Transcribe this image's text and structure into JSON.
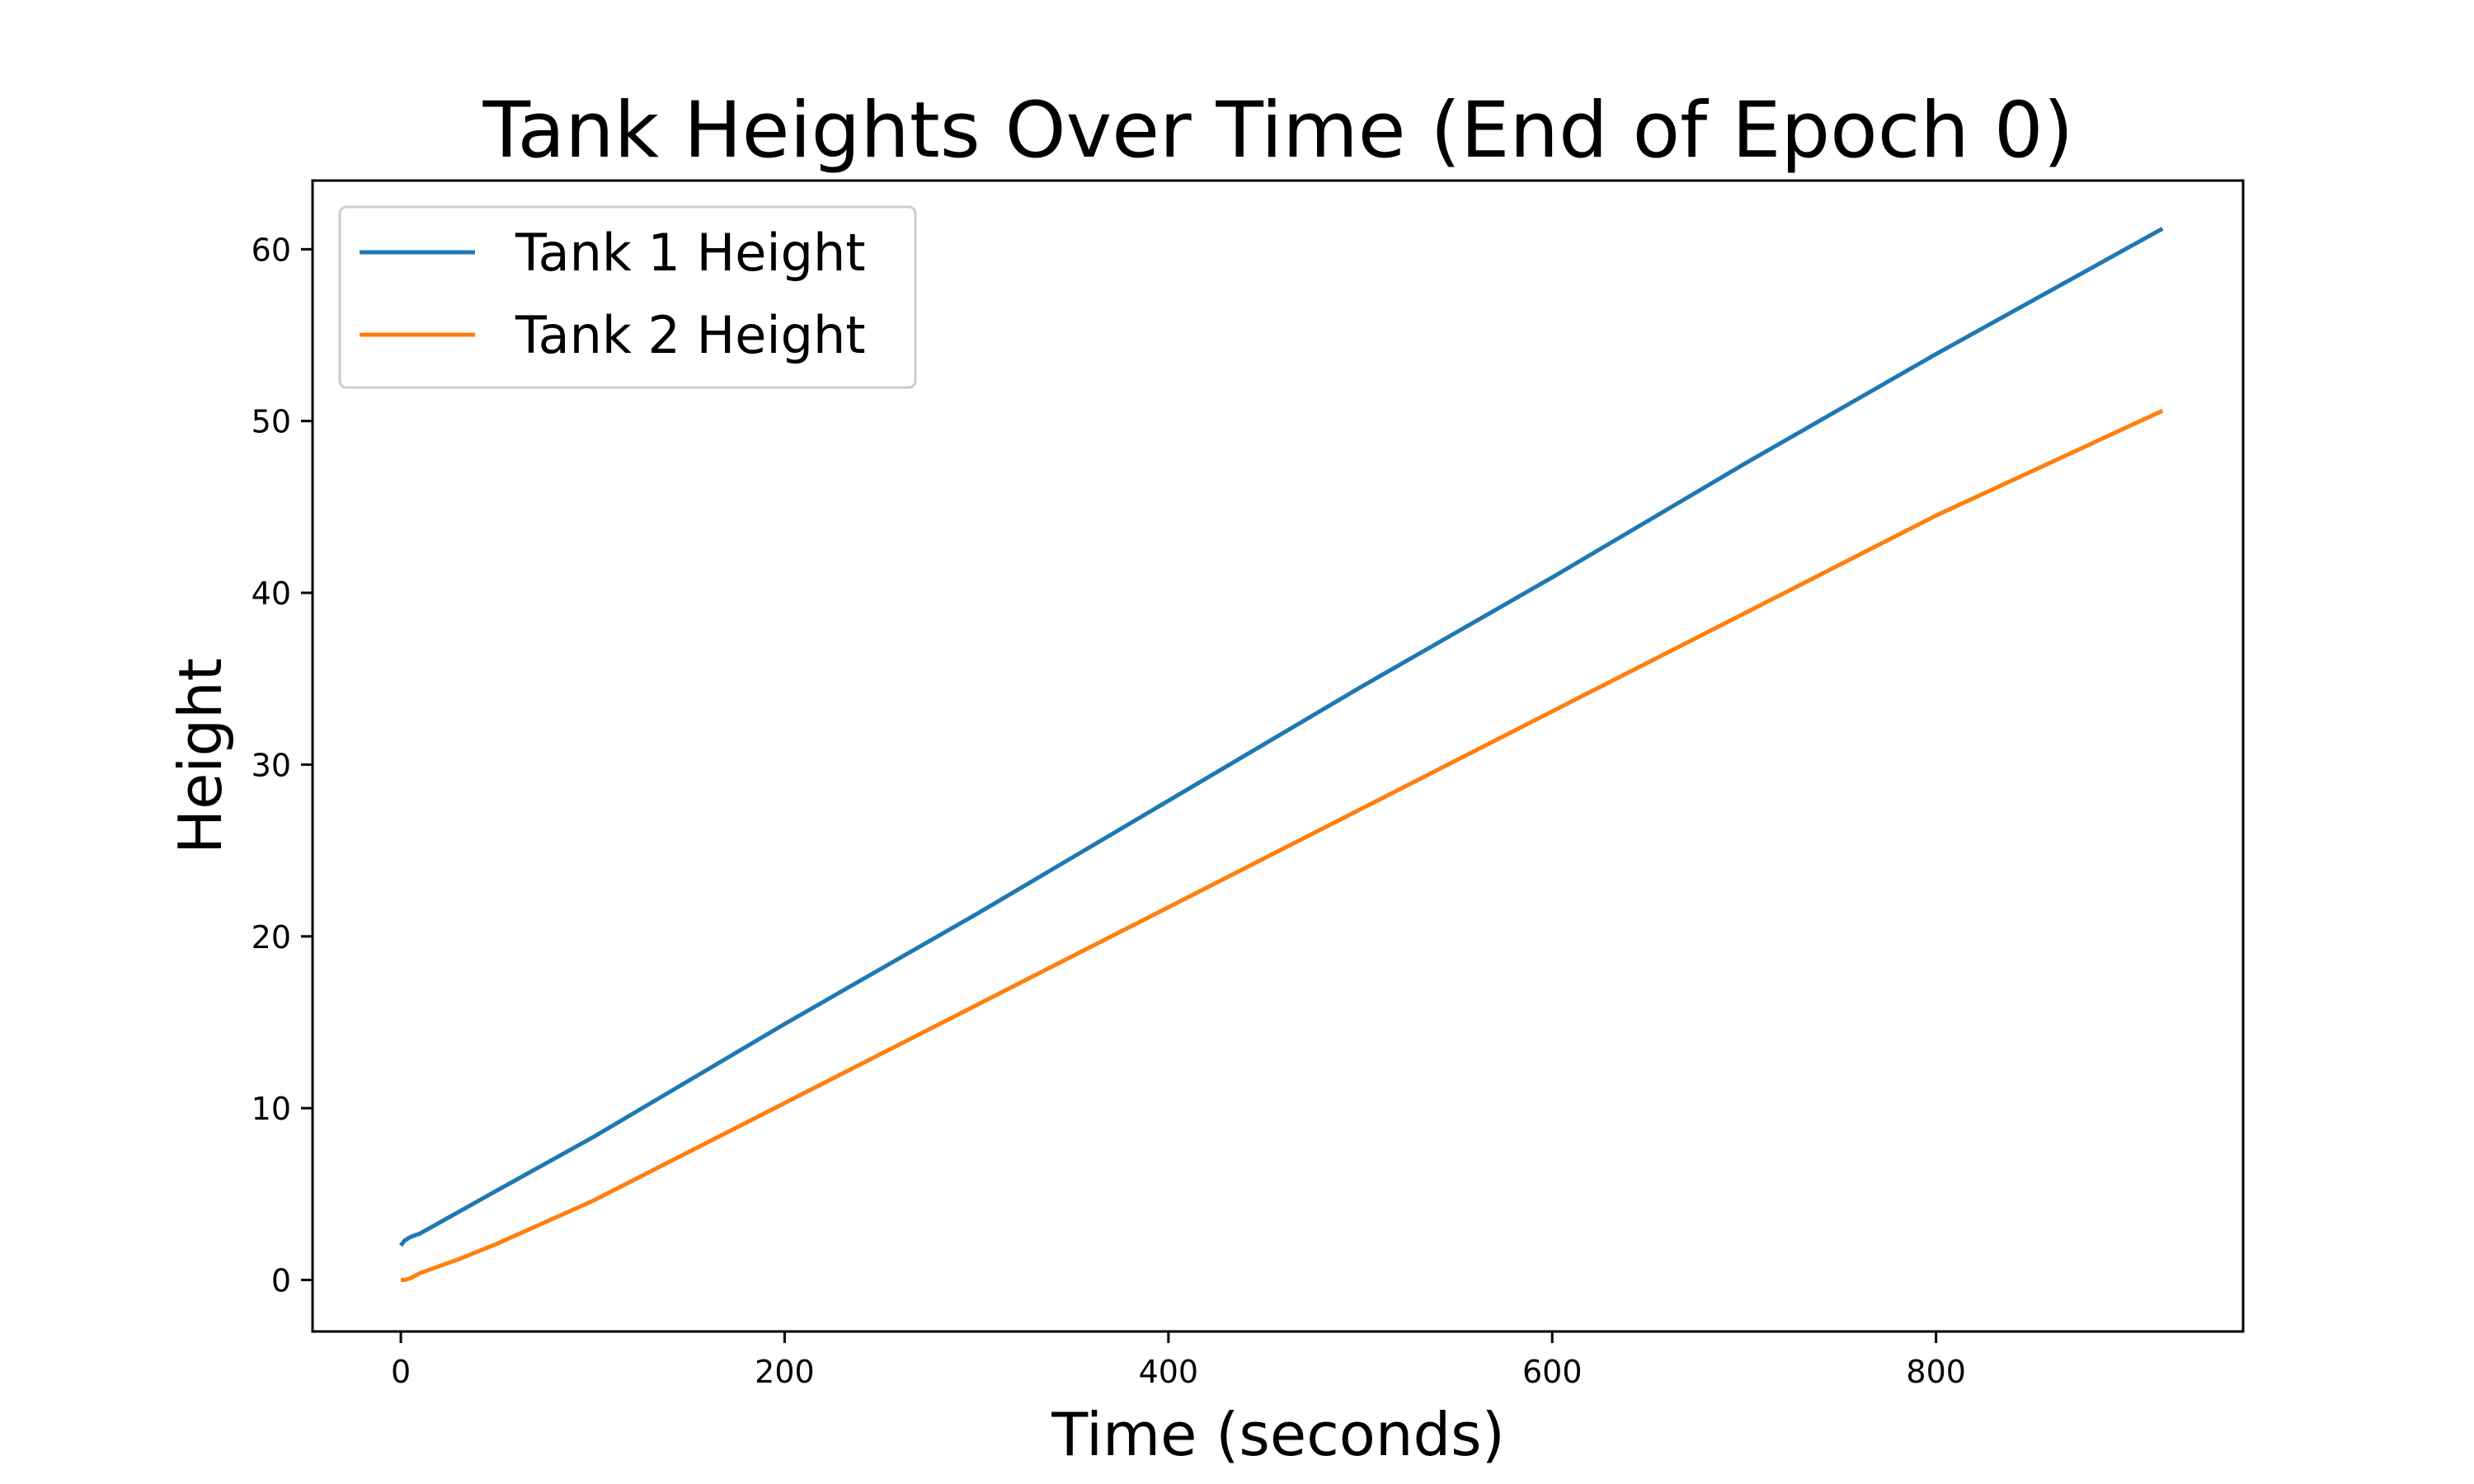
{
  "chart_data": {
    "type": "line",
    "title": "Tank Heights Over Time (End of Epoch 0)",
    "xlabel": "Time (seconds)",
    "ylabel": "Height",
    "xlim": [
      -46,
      960
    ],
    "ylim": [
      -3,
      64
    ],
    "xticks": [
      0,
      200,
      400,
      600,
      800
    ],
    "yticks": [
      0,
      10,
      20,
      30,
      40,
      50,
      60
    ],
    "grid": false,
    "legend_position": "top-left",
    "series": [
      {
        "name": "Tank 1 Height",
        "color": "#1f77b4",
        "x": [
          0,
          2,
          5,
          10,
          50,
          100,
          200,
          300,
          400,
          500,
          600,
          700,
          800,
          918
        ],
        "y": [
          2.0,
          2.3,
          2.5,
          2.7,
          5.2,
          8.3,
          14.9,
          21.3,
          27.9,
          34.5,
          40.9,
          47.5,
          53.9,
          61.2
        ]
      },
      {
        "name": "Tank 2 Height",
        "color": "#ff7f0e",
        "x": [
          0,
          2,
          5,
          10,
          20,
          30,
          50,
          100,
          200,
          300,
          400,
          500,
          600,
          700,
          800,
          918
        ],
        "y": [
          0.0,
          0.0,
          0.1,
          0.4,
          0.8,
          1.2,
          2.1,
          4.6,
          10.3,
          16.0,
          21.7,
          27.4,
          33.1,
          38.8,
          44.5,
          50.6
        ]
      }
    ]
  }
}
